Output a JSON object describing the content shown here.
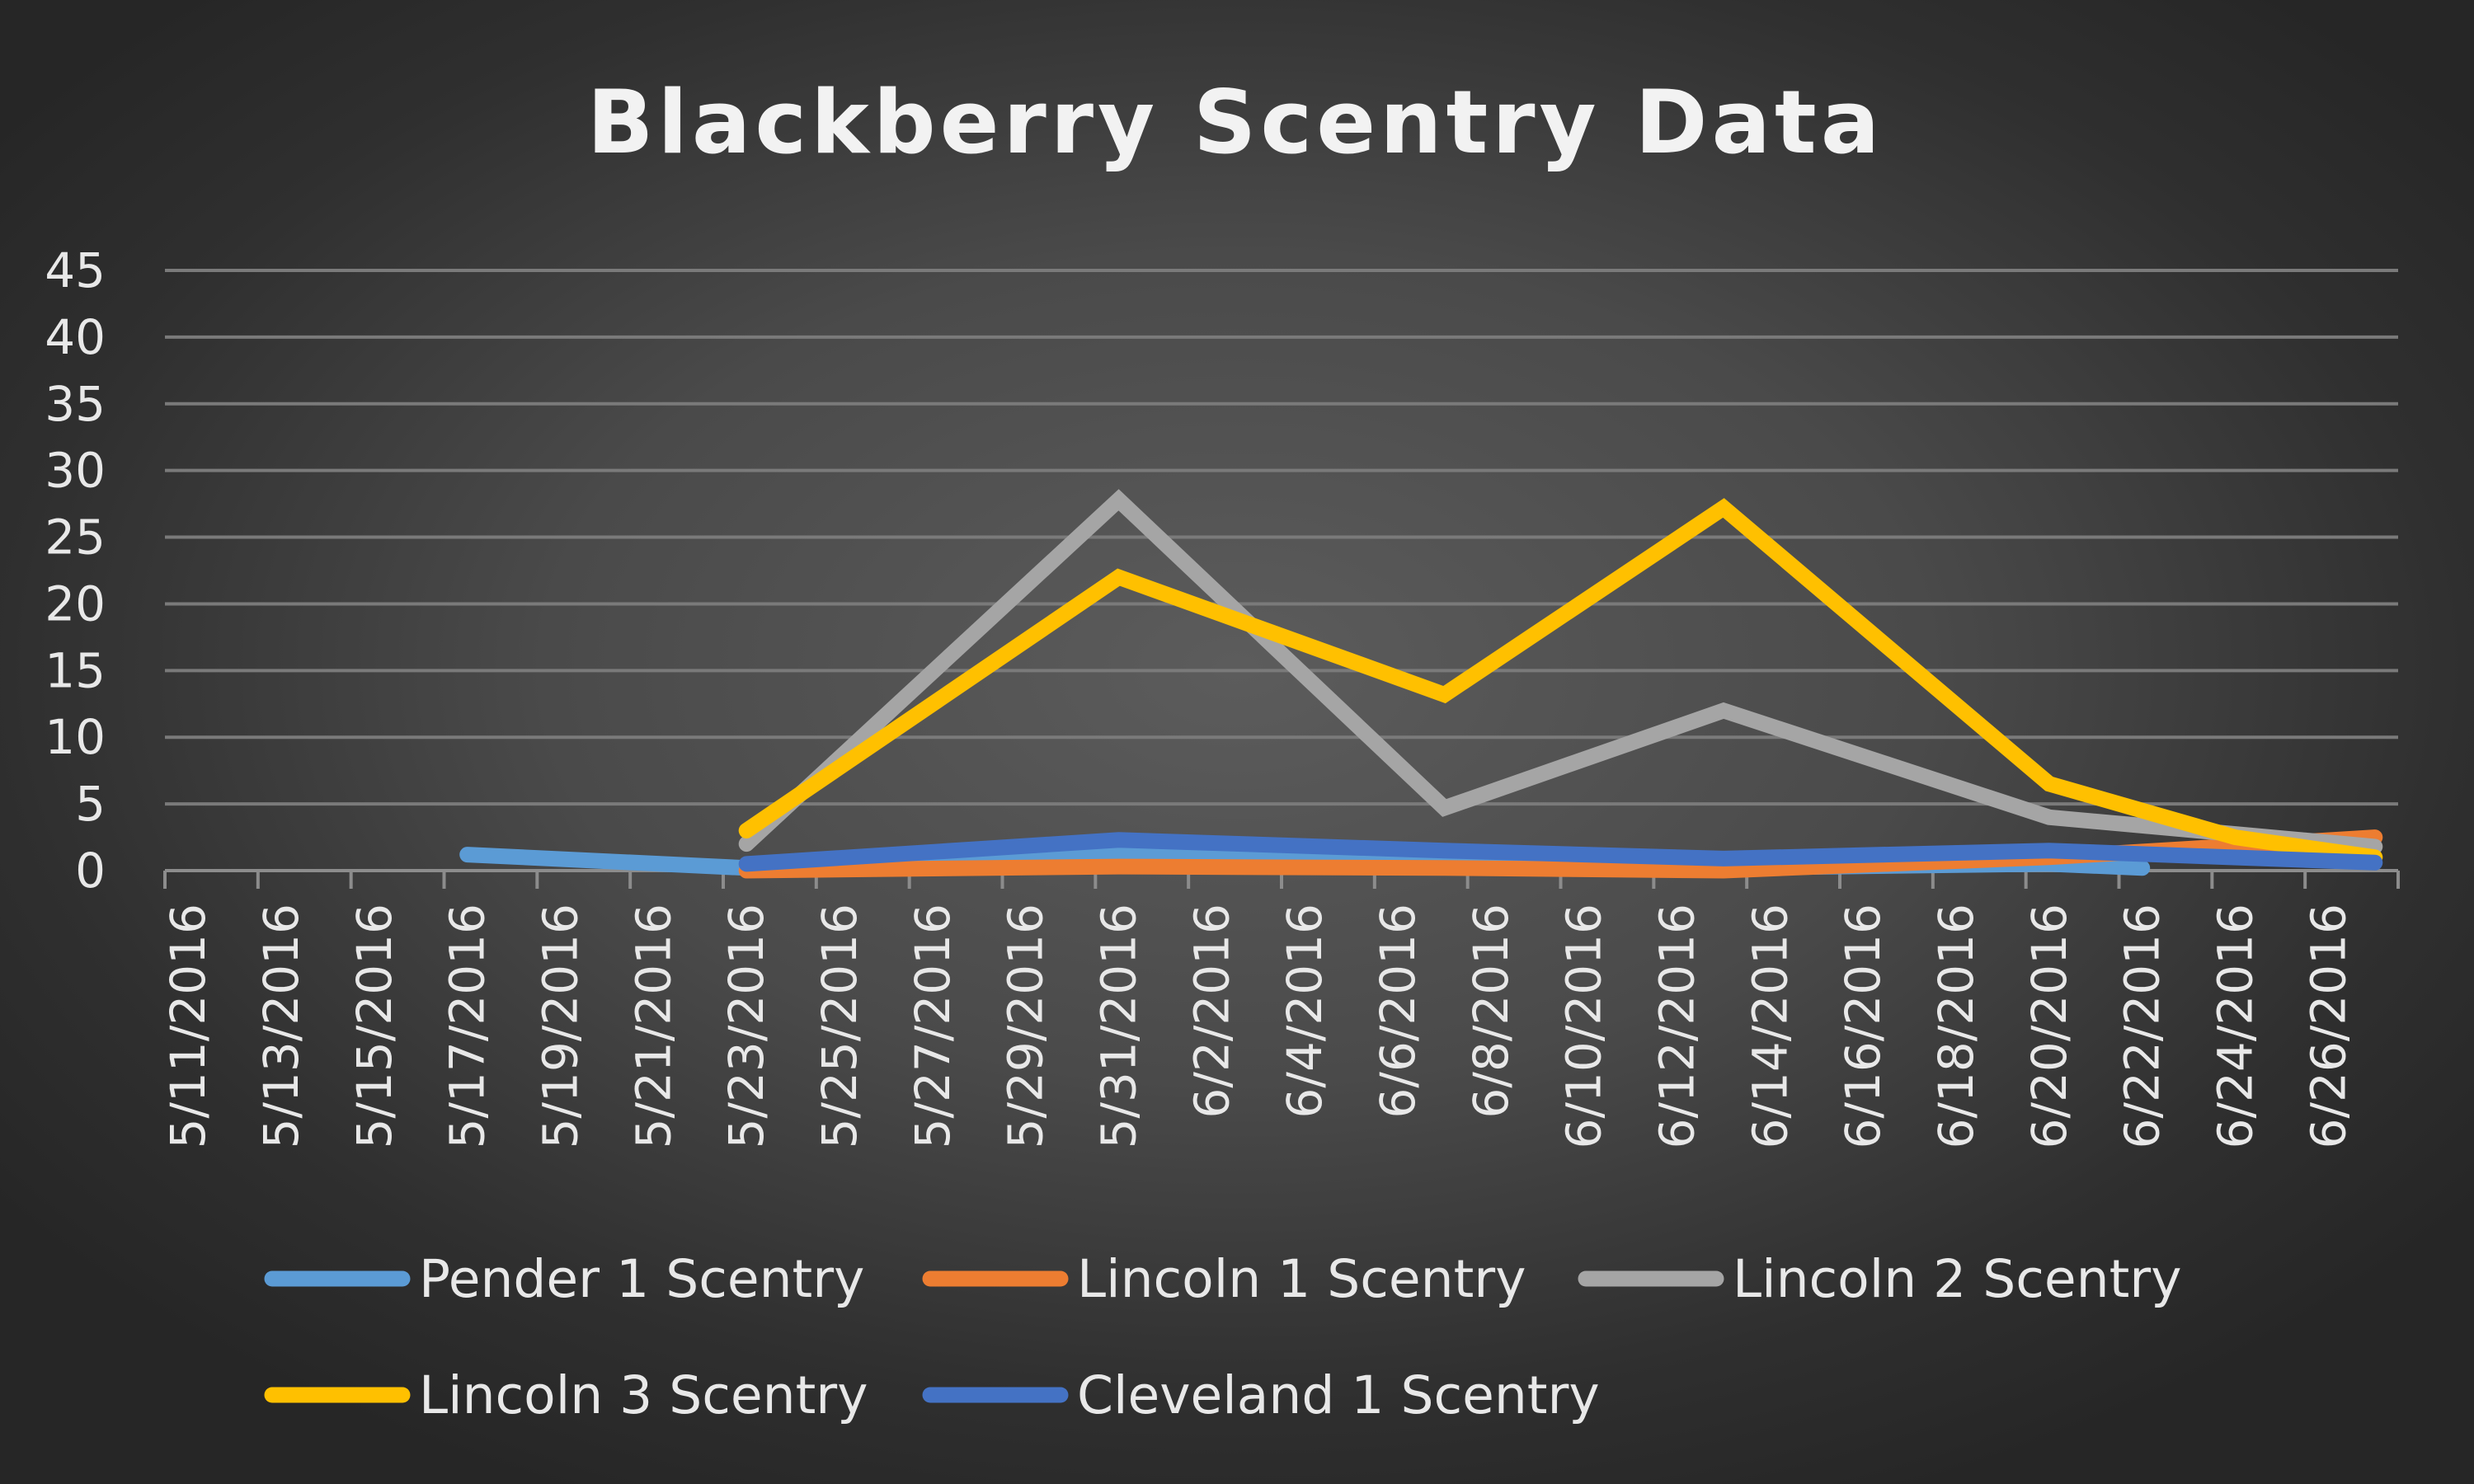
{
  "chart_data": {
    "type": "line",
    "title": "Blackberry Scentry Data",
    "xlabel": "",
    "ylabel": "",
    "x_start": "2016-05-11",
    "x_end": "2016-06-27",
    "x_tick_labels": [
      "5/11/2016",
      "5/13/2016",
      "5/15/2016",
      "5/17/2016",
      "5/19/2016",
      "5/21/2016",
      "5/23/2016",
      "5/25/2016",
      "5/27/2016",
      "5/29/2016",
      "5/31/2016",
      "6/2/2016",
      "6/4/2016",
      "6/6/2016",
      "6/8/2016",
      "6/10/2016",
      "6/12/2016",
      "6/14/2016",
      "6/16/2016",
      "6/18/2016",
      "6/20/2016",
      "6/22/2016",
      "6/24/2016",
      "6/26/2016"
    ],
    "y_ticks": [
      "0",
      "5",
      "10",
      "15",
      "20",
      "25",
      "30",
      "35",
      "40",
      "45"
    ],
    "ylim": [
      0,
      45
    ],
    "grid": true,
    "legend_position": "bottom",
    "series": [
      {
        "name": "Pender 1 Scentry",
        "color": "#5b9bd5",
        "points": [
          {
            "x": "2016-05-17",
            "y": 1.2
          },
          {
            "x": "2016-05-23",
            "y": 0.2
          },
          {
            "x": "2016-05-31",
            "y": 1.2
          },
          {
            "x": "2016-06-07",
            "y": 0.5
          },
          {
            "x": "2016-06-13",
            "y": 0.2
          },
          {
            "x": "2016-06-20",
            "y": 0.5
          },
          {
            "x": "2016-06-22",
            "y": 0.2
          }
        ]
      },
      {
        "name": "Lincoln 1 Scentry",
        "color": "#ed7d31",
        "points": [
          {
            "x": "2016-05-23",
            "y": 0
          },
          {
            "x": "2016-05-31",
            "y": 0.3
          },
          {
            "x": "2016-06-07",
            "y": 0.2
          },
          {
            "x": "2016-06-13",
            "y": 0
          },
          {
            "x": "2016-06-20",
            "y": 1
          },
          {
            "x": "2016-06-27",
            "y": 2.5
          }
        ]
      },
      {
        "name": "Lincoln 2 Scentry",
        "color": "#a5a5a5",
        "points": [
          {
            "x": "2016-05-23",
            "y": 2
          },
          {
            "x": "2016-05-31",
            "y": 27.8
          },
          {
            "x": "2016-06-07",
            "y": 4.7
          },
          {
            "x": "2016-06-13",
            "y": 12
          },
          {
            "x": "2016-06-20",
            "y": 4
          },
          {
            "x": "2016-06-27",
            "y": 1.8
          }
        ]
      },
      {
        "name": "Lincoln 3 Scentry",
        "color": "#ffc000",
        "points": [
          {
            "x": "2016-05-23",
            "y": 3
          },
          {
            "x": "2016-05-31",
            "y": 22
          },
          {
            "x": "2016-06-07",
            "y": 13.2
          },
          {
            "x": "2016-06-13",
            "y": 27.2
          },
          {
            "x": "2016-06-20",
            "y": 6.5
          },
          {
            "x": "2016-06-24",
            "y": 2.5
          },
          {
            "x": "2016-06-27",
            "y": 1
          }
        ]
      },
      {
        "name": "Cleveland 1 Scentry",
        "color": "#4472c4",
        "points": [
          {
            "x": "2016-05-23",
            "y": 0.5
          },
          {
            "x": "2016-05-31",
            "y": 2.3
          },
          {
            "x": "2016-06-07",
            "y": 1.5
          },
          {
            "x": "2016-06-13",
            "y": 0.9
          },
          {
            "x": "2016-06-20",
            "y": 1.5
          },
          {
            "x": "2016-06-27",
            "y": 0.6
          }
        ]
      }
    ]
  }
}
